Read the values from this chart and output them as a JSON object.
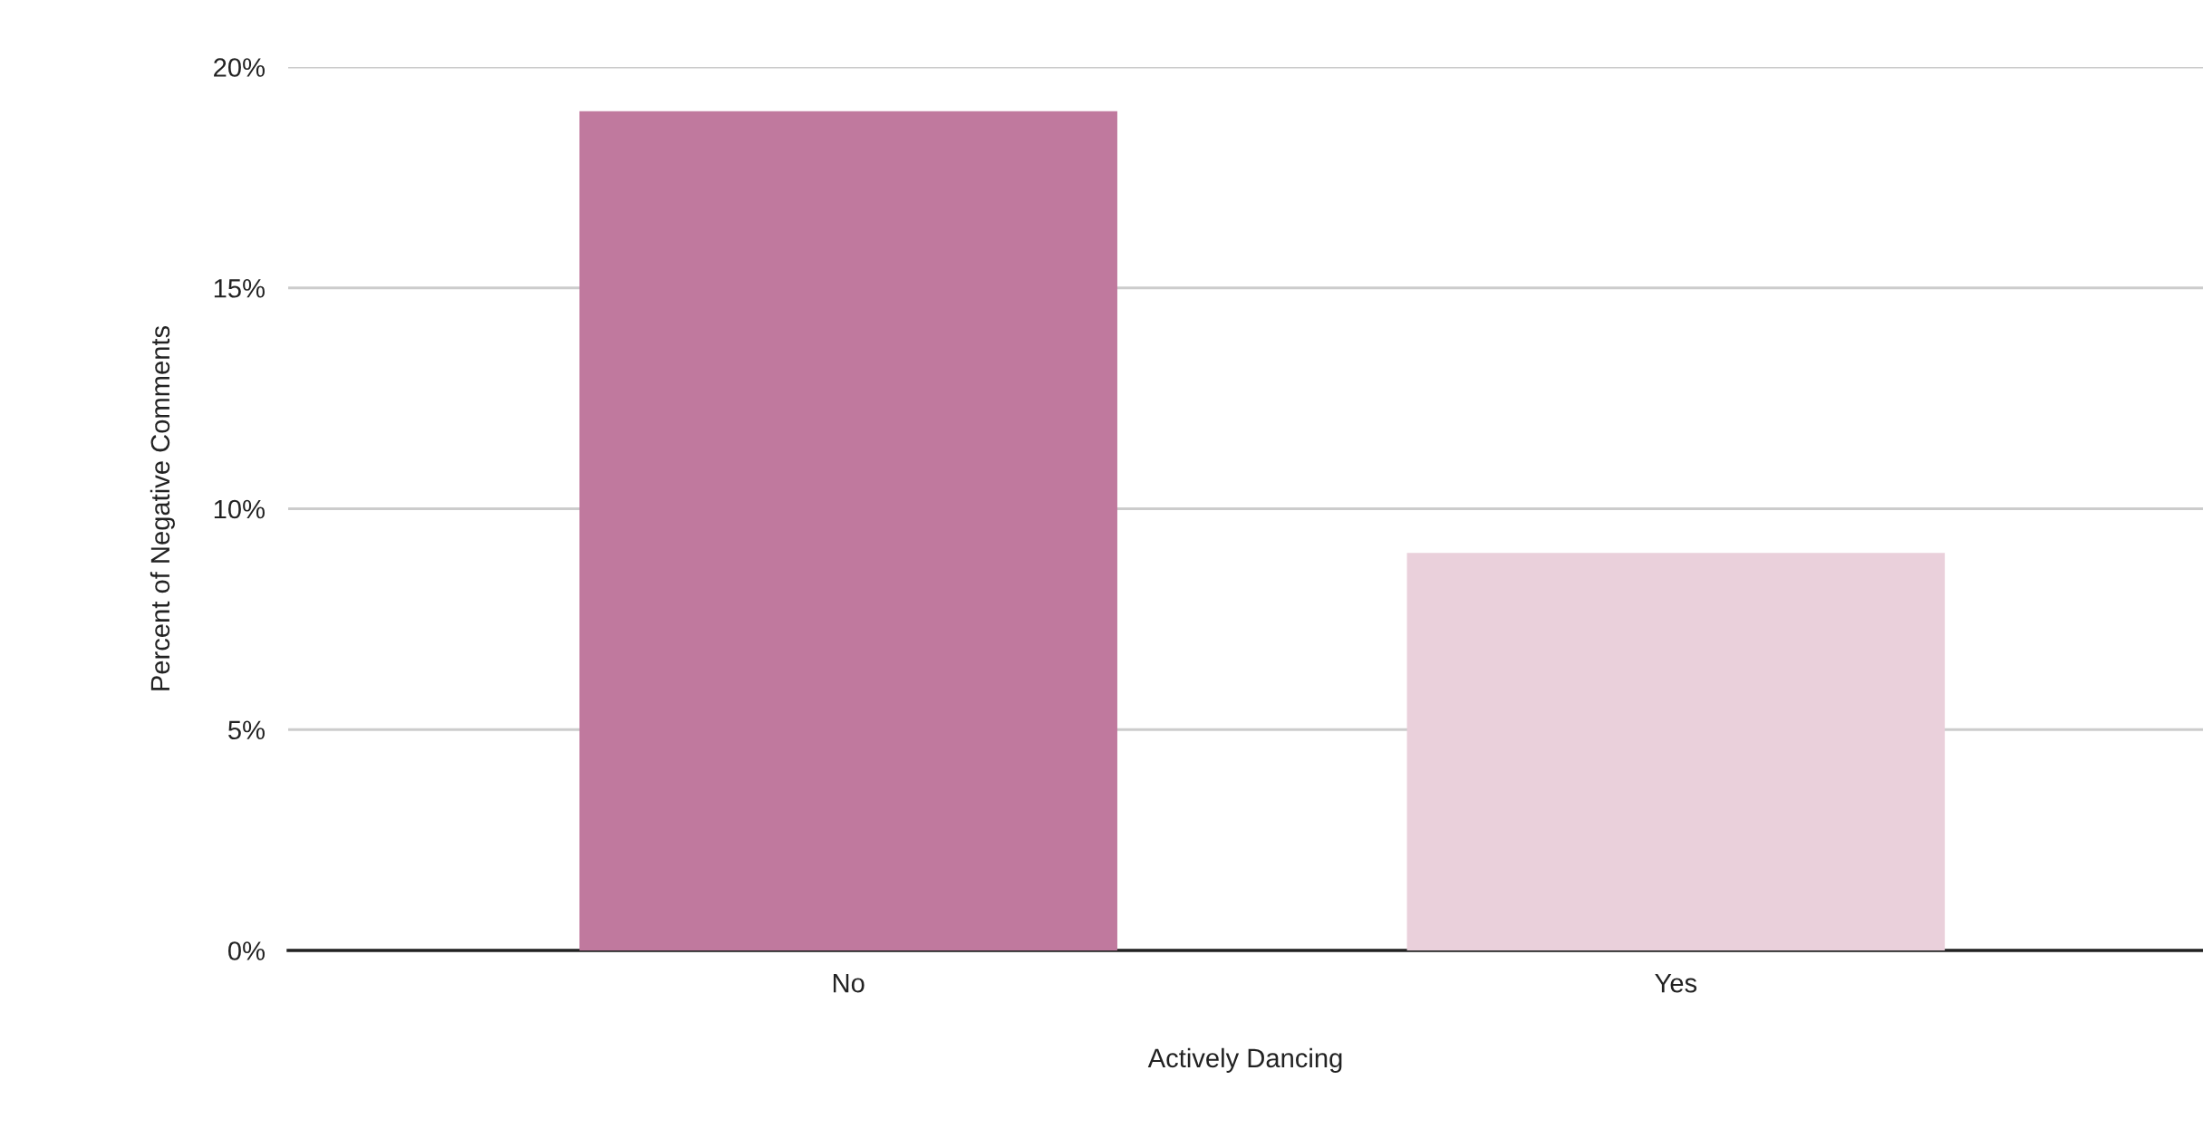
{
  "chart_data": {
    "type": "bar",
    "xlabel": "Actively Dancing",
    "ylabel": "Percent of Negative Comments",
    "categories": [
      "No",
      "Yes"
    ],
    "values": [
      19,
      9
    ],
    "colors": [
      "#c0799e",
      "#ead0db"
    ],
    "ylim": [
      0,
      20
    ],
    "yticks": [
      {
        "value": 0,
        "label": "0%"
      },
      {
        "value": 5,
        "label": "5%"
      },
      {
        "value": 10,
        "label": "10%"
      },
      {
        "value": 15,
        "label": "15%"
      },
      {
        "value": 20,
        "label": "20%"
      }
    ],
    "grid": "y",
    "legend": false
  }
}
